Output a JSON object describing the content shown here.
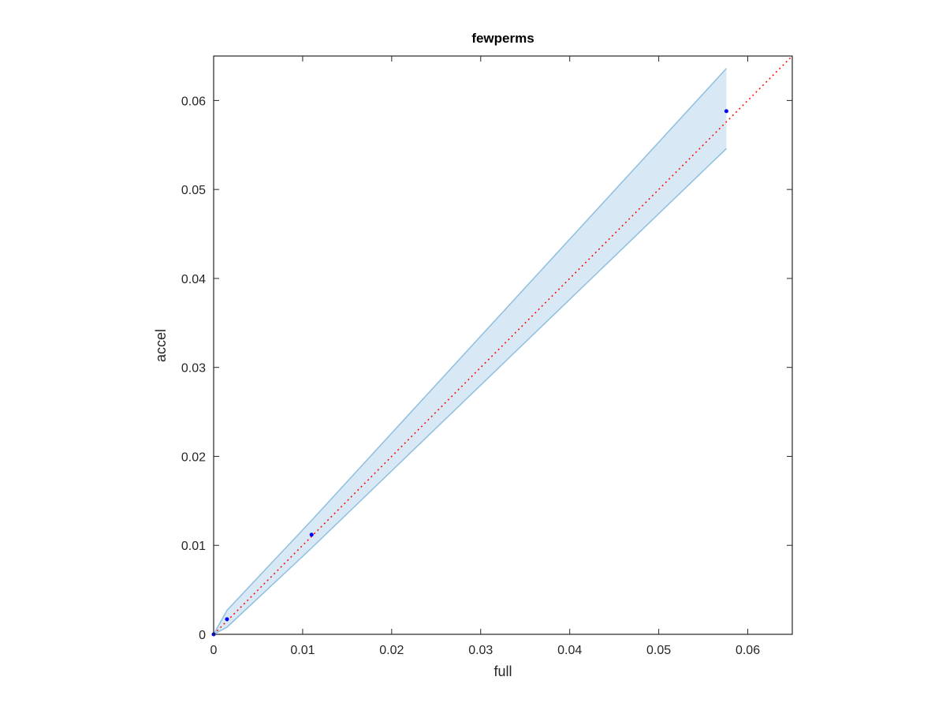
{
  "chart_data": {
    "type": "scatter",
    "title": "fewperms",
    "x_label": "full",
    "y_label": "accel",
    "xlim": [
      0,
      0.065
    ],
    "ylim": [
      0,
      0.065
    ],
    "xticks": [
      0,
      0.01,
      0.02,
      0.03,
      0.04,
      0.05,
      0.06
    ],
    "yticks": [
      0,
      0.01,
      0.02,
      0.03,
      0.04,
      0.05,
      0.06
    ],
    "box": true,
    "series": [
      {
        "color": "#0000ff",
        "x": [
          0,
          0.0015,
          0.011,
          0.0576
        ],
        "values": [
          0,
          0.0017,
          0.0112,
          0.0588
        ]
      }
    ],
    "band": {
      "color": "#8fbfe0",
      "fill": "#d8e8f4",
      "x": [
        0,
        0.0015,
        0.011,
        0.0576
      ],
      "upper": [
        0,
        0.0027,
        0.0128,
        0.0636
      ],
      "lower": [
        0,
        0.0008,
        0.0097,
        0.0546
      ]
    },
    "reference": {
      "color": "#ff0000",
      "x": [
        0,
        0.065
      ],
      "values": [
        0,
        0.065
      ]
    }
  }
}
